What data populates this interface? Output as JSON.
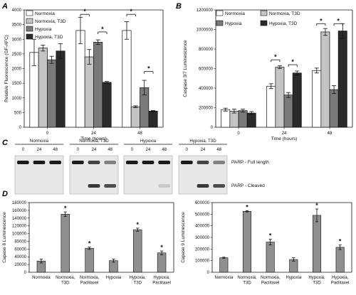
{
  "panel_labels": [
    "A",
    "B",
    "C",
    "D"
  ],
  "colors": {
    "normoxia": "#ffffff",
    "normoxia_t3d": "#c4c4c4",
    "hypoxia": "#7a7a7a",
    "hypoxia_t3d": "#2a2a2a",
    "bar_d": "#8f8f8f",
    "stroke": "#111111"
  },
  "chart_data": [
    {
      "id": "A",
      "type": "bar",
      "title": "",
      "xlabel": "Time (hours)",
      "ylabel": "Relative Fluorescence (GF-AFC)",
      "ylim": [
        0,
        4000
      ],
      "yticks": [
        0,
        500,
        1000,
        1500,
        2000,
        2500,
        3000,
        3500,
        4000
      ],
      "categories": [
        "0",
        "24",
        "48"
      ],
      "legend_position": "top-left",
      "series": [
        {
          "name": "Normoxia",
          "values": [
            2550,
            3300,
            3300
          ],
          "errors": [
            450,
            450,
            300
          ]
        },
        {
          "name": "Normoxia, T3D",
          "values": [
            2700,
            2400,
            700
          ],
          "errors": [
            100,
            250,
            30
          ]
        },
        {
          "name": "Hypoxia",
          "values": [
            2300,
            2900,
            1350
          ],
          "errors": [
            120,
            80,
            250
          ]
        },
        {
          "name": "Hypoxia, T3D",
          "values": [
            2600,
            1530,
            550
          ],
          "errors": [
            250,
            30,
            20
          ]
        }
      ],
      "significance": [
        {
          "category": 1,
          "from": 0,
          "to": 1,
          "y": 3850,
          "label": "*"
        },
        {
          "category": 1,
          "from": 2,
          "to": 3,
          "y": 3250,
          "label": "*"
        },
        {
          "category": 2,
          "from": 0,
          "to": 1,
          "y": 3850,
          "label": "*"
        },
        {
          "category": 2,
          "from": 2,
          "to": 3,
          "y": 1900,
          "label": "*"
        }
      ]
    },
    {
      "id": "B",
      "type": "bar",
      "title": "",
      "xlabel": "Time (hours)",
      "ylabel": "Caspase 3/7 Luminescence",
      "ylim": [
        0,
        1200000
      ],
      "yticks": [
        0,
        200000,
        400000,
        600000,
        800000,
        1000000,
        1200000
      ],
      "categories": [
        "0",
        "24",
        "48"
      ],
      "legend_position": "top",
      "series": [
        {
          "name": "Normoxia",
          "values": [
            180000,
            420000,
            580000
          ],
          "errors": [
            15000,
            25000,
            25000
          ]
        },
        {
          "name": "Normoxia, T3D",
          "values": [
            165000,
            615000,
            975000
          ],
          "errors": [
            20000,
            15000,
            35000
          ]
        },
        {
          "name": "Hypoxia",
          "values": [
            170000,
            330000,
            385000
          ],
          "errors": [
            15000,
            25000,
            40000
          ]
        },
        {
          "name": "Hypoxia, T3D",
          "values": [
            145000,
            555000,
            985000
          ],
          "errors": [
            15000,
            20000,
            75000
          ]
        }
      ],
      "significance": [
        {
          "category": 1,
          "from": 0,
          "to": 1,
          "y": 690000,
          "label": "*"
        },
        {
          "category": 1,
          "from": 2,
          "to": 3,
          "y": 640000,
          "label": "*"
        },
        {
          "category": 2,
          "from": 0,
          "to": 1,
          "y": 1060000,
          "label": "*"
        },
        {
          "category": 2,
          "from": 2,
          "to": 3,
          "y": 1060000,
          "label": "*"
        }
      ]
    },
    {
      "id": "C",
      "type": "table",
      "groups": [
        "Normoxia",
        "Normoxia, T3D",
        "Hypoxia",
        "Hypoxia, T3D"
      ],
      "lane_labels": [
        "0",
        "24",
        "48"
      ],
      "band_labels": [
        "PARP - Full length",
        "PARP - Cleaved"
      ]
    },
    {
      "id": "D1",
      "type": "bar",
      "title": "",
      "xlabel": "",
      "ylabel": "Capase 8 Luminescence",
      "ylim": [
        0,
        180000
      ],
      "yticks": [
        0,
        20000,
        40000,
        60000,
        80000,
        100000,
        120000,
        140000,
        160000,
        180000
      ],
      "categories": [
        [
          "Normoxia"
        ],
        [
          "Normoxia,",
          "T3D"
        ],
        [
          "Normoxia,",
          "Paclitaxel"
        ],
        [
          "Hypoxia"
        ],
        [
          "Hypoxia,",
          "T3D"
        ],
        [
          "Hypoxia,",
          "Paclitaxel"
        ]
      ],
      "values": [
        29000,
        150000,
        62000,
        30000,
        110000,
        50000
      ],
      "errors": [
        5000,
        6000,
        3000,
        4000,
        4000,
        5000
      ],
      "significant": [
        false,
        true,
        true,
        false,
        true,
        true
      ]
    },
    {
      "id": "D2",
      "type": "bar",
      "title": "",
      "xlabel": "",
      "ylabel": "Capase 9 Luminescence",
      "ylim": [
        0,
        600000
      ],
      "yticks": [
        0,
        100000,
        200000,
        300000,
        400000,
        500000,
        600000
      ],
      "categories": [
        [
          "Normoxia"
        ],
        [
          "Normoxia,",
          "T3D"
        ],
        [
          "Normoxia,",
          "Paclitaxel"
        ],
        [
          "Hypoxia"
        ],
        [
          "Hypoxia,",
          "T3D"
        ],
        [
          "Hypoxia,",
          "Paclitaxel"
        ]
      ],
      "values": [
        125000,
        525000,
        260000,
        110000,
        490000,
        215000
      ],
      "errors": [
        5000,
        5000,
        25000,
        15000,
        55000,
        20000
      ],
      "significant": [
        false,
        true,
        true,
        false,
        true,
        true
      ]
    }
  ]
}
